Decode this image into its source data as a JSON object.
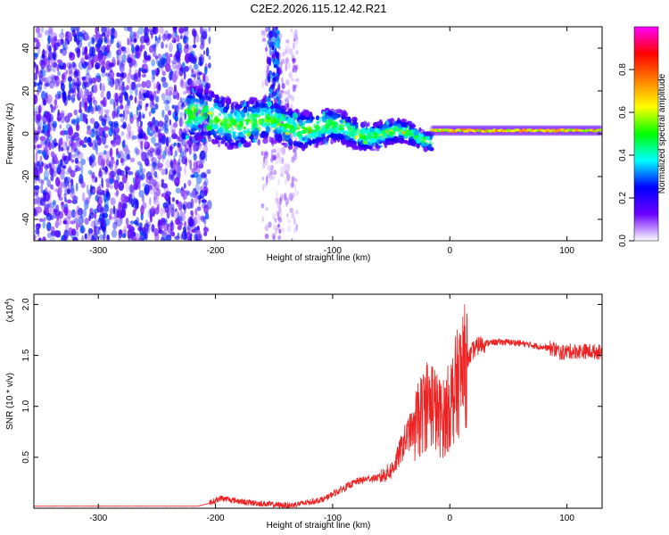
{
  "page_title": "C2E2.2026.115.12.42.R21",
  "chart_data": [
    {
      "type": "heatmap",
      "title": "C2E2.2026.115.12.42.R21",
      "xlabel": "Height of straight line (km)",
      "ylabel": "Frequency (Hz)",
      "xlim": [
        -355,
        130
      ],
      "ylim": [
        -50,
        50
      ],
      "xticks": [
        -300,
        -200,
        -100,
        0,
        100
      ],
      "xtick_labels": [
        "-300",
        "-200",
        "-100",
        "0",
        "100"
      ],
      "yticks": [
        -40,
        -20,
        0,
        20,
        40
      ],
      "ytick_labels": [
        "-40",
        "-20",
        "0",
        "20",
        "40"
      ],
      "colorbar": {
        "label": "Normalized spectral amplitude",
        "range": [
          0,
          1
        ],
        "ticks": [
          0.0,
          0.2,
          0.4,
          0.6,
          0.8
        ],
        "tick_labels": [
          "0.0",
          "0.2",
          "0.4",
          "0.6",
          "0.8"
        ],
        "colormap": [
          "#ffffff",
          "#6a00ff",
          "#0000ff",
          "#00ffff",
          "#00ff00",
          "#ffff00",
          "#ff7f00",
          "#ff0000",
          "#ff00ff"
        ]
      },
      "regions": [
        {
          "name": "broadband noise",
          "x": [
            -355,
            -205
          ],
          "freq": [
            -50,
            50
          ],
          "amplitude": 0.15
        },
        {
          "name": "noisy band",
          "x": [
            -160,
            -130
          ],
          "freq": [
            -50,
            50
          ],
          "amplitude": 0.1
        },
        {
          "name": "noisy spike",
          "x": [
            -155,
            -145
          ],
          "freq": [
            10,
            50
          ],
          "amplitude": 0.2
        },
        {
          "name": "signal onset",
          "x": [
            -225,
            -15
          ],
          "freq_center": [
            8,
            -2
          ],
          "amplitude": 0.35
        },
        {
          "name": "carrier",
          "x": [
            -15,
            130
          ],
          "freq_center": [
            1.5,
            1.5
          ],
          "amplitude": 0.7
        }
      ]
    },
    {
      "type": "line",
      "title": "",
      "xlabel": "Height of straight line (km)",
      "ylabel": "SNR (10 * v/v)",
      "y_scale_label": "(x10",
      "y_scale_exponent": "4",
      "y_scale_suffix": ")",
      "xlim": [
        -355,
        130
      ],
      "ylim": [
        0,
        2.1
      ],
      "xticks": [
        -300,
        -200,
        -100,
        0,
        100
      ],
      "xtick_labels": [
        "-300",
        "-200",
        "-100",
        "0",
        "100"
      ],
      "yticks": [
        0.5,
        1.0,
        1.5,
        2.0
      ],
      "ytick_labels": [
        "0.5",
        "1.0",
        "1.5",
        "2.0"
      ],
      "color": "#ee2222",
      "series": [
        {
          "name": "SNR",
          "x": [
            -355,
            -300,
            -250,
            -215,
            -205,
            -195,
            -185,
            -175,
            -165,
            -155,
            -145,
            -135,
            -125,
            -115,
            -105,
            -100,
            -90,
            -80,
            -70,
            -60,
            -50,
            -45,
            -40,
            -35,
            -30,
            -25,
            -20,
            -15,
            -10,
            -5,
            0,
            5,
            10,
            15,
            20,
            25,
            30,
            40,
            50,
            60,
            70,
            80,
            90,
            95,
            100,
            110,
            120,
            130
          ],
          "y": [
            0.02,
            0.02,
            0.02,
            0.02,
            0.05,
            0.1,
            0.08,
            0.06,
            0.05,
            0.04,
            0.03,
            0.03,
            0.05,
            0.07,
            0.1,
            0.14,
            0.2,
            0.26,
            0.29,
            0.3,
            0.37,
            0.48,
            0.62,
            0.74,
            0.78,
            0.9,
            1.02,
            1.05,
            0.9,
            0.88,
            1.02,
            1.18,
            1.32,
            1.45,
            1.55,
            1.6,
            1.62,
            1.63,
            1.63,
            1.62,
            1.6,
            1.58,
            1.56,
            1.52,
            1.54,
            1.54,
            1.54,
            1.53
          ]
        }
      ]
    }
  ]
}
